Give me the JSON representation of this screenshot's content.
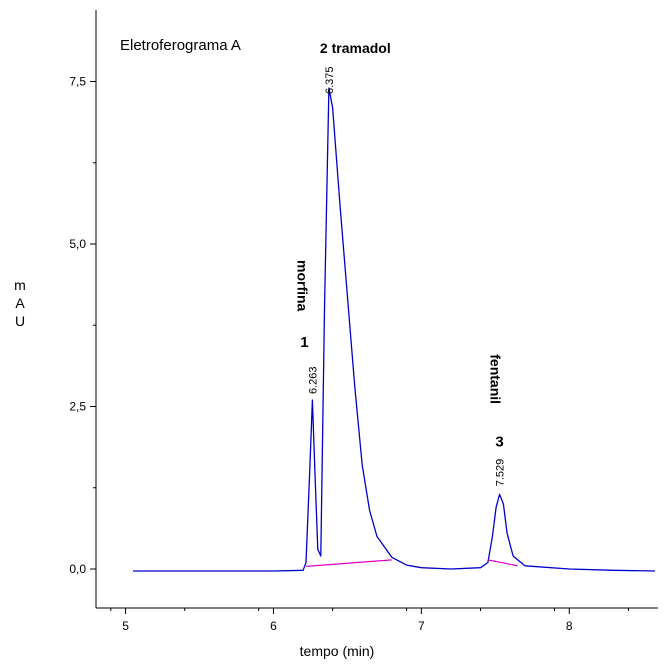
{
  "chart_data": {
    "type": "line",
    "title": "Eletroferograma A",
    "xlabel": "tempo (min)",
    "ylabel": "m A U",
    "xlim": [
      4.8,
      8.6
    ],
    "ylim": [
      -0.6,
      8.6
    ],
    "xticks": [
      5,
      6,
      7,
      8
    ],
    "x_tick_labels": [
      "5",
      "6",
      "7",
      "8"
    ],
    "yticks": [
      0,
      2.5,
      5,
      7.5
    ],
    "y_tick_labels": [
      "0,0",
      "2,5",
      "5,0",
      "7,5"
    ],
    "grid": false,
    "colors": {
      "signal": "#0000cc",
      "baseline": "#e000c8",
      "axis": "#000000"
    },
    "series": [
      {
        "values": [
          [
            5.05,
            -0.03
          ],
          [
            5.5,
            -0.03
          ],
          [
            6.0,
            -0.03
          ],
          [
            6.2,
            -0.02
          ],
          [
            6.22,
            0.1
          ],
          [
            6.245,
            1.5
          ],
          [
            6.263,
            2.6
          ],
          [
            6.28,
            1.5
          ],
          [
            6.3,
            0.3
          ],
          [
            6.32,
            0.2
          ],
          [
            6.345,
            4.0
          ],
          [
            6.375,
            7.4
          ],
          [
            6.4,
            7.1
          ],
          [
            6.45,
            5.6
          ],
          [
            6.5,
            4.2
          ],
          [
            6.55,
            2.8
          ],
          [
            6.6,
            1.6
          ],
          [
            6.65,
            0.9
          ],
          [
            6.7,
            0.5
          ],
          [
            6.8,
            0.18
          ],
          [
            6.9,
            0.06
          ],
          [
            7.0,
            0.02
          ],
          [
            7.2,
            0.0
          ],
          [
            7.4,
            0.02
          ],
          [
            7.45,
            0.1
          ],
          [
            7.48,
            0.5
          ],
          [
            7.505,
            0.95
          ],
          [
            7.529,
            1.15
          ],
          [
            7.555,
            1.0
          ],
          [
            7.58,
            0.55
          ],
          [
            7.62,
            0.2
          ],
          [
            7.7,
            0.05
          ],
          [
            8.0,
            0.0
          ],
          [
            8.3,
            -0.02
          ],
          [
            8.58,
            -0.03
          ]
        ]
      }
    ],
    "baselines": [
      [
        [
          6.22,
          0.04
        ],
        [
          6.8,
          0.14
        ]
      ],
      [
        [
          7.45,
          0.14
        ],
        [
          7.65,
          0.05
        ]
      ]
    ],
    "peaks": [
      {
        "number": "1",
        "name": "morfina",
        "rt_label": "6.263",
        "x": 6.263,
        "y": 2.6
      },
      {
        "number": "2",
        "name": "tramadol",
        "rt_label": "6.375",
        "x": 6.375,
        "y": 7.4
      },
      {
        "number": "3",
        "name": "fentanil",
        "rt_label": "7.529",
        "x": 7.529,
        "y": 1.15
      }
    ]
  }
}
